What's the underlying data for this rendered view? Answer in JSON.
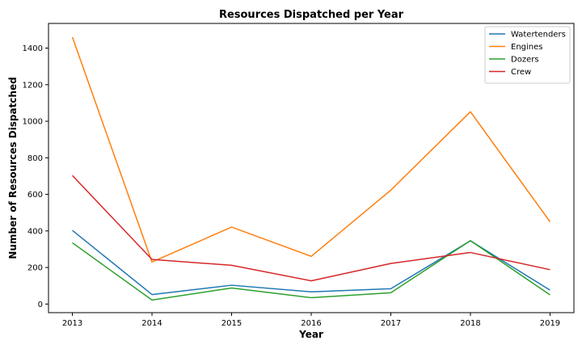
{
  "chart_data": {
    "type": "line",
    "title": "Resources Dispatched per Year",
    "xlabel": "Year",
    "ylabel": "Number of Resources Dispatched",
    "x": [
      2013,
      2014,
      2015,
      2016,
      2017,
      2018,
      2019
    ],
    "x_tick_labels": [
      "2013",
      "2014",
      "2015",
      "2016",
      "2017",
      "2018",
      "2019"
    ],
    "y_ticks": [
      0,
      200,
      400,
      600,
      800,
      1000,
      1200,
      1400
    ],
    "y_tick_labels": [
      "0",
      "200",
      "400",
      "600",
      "800",
      "1000",
      "1200",
      "1400"
    ],
    "xlim": [
      2012.7,
      2019.3
    ],
    "ylim": [
      -47,
      1535
    ],
    "grid": false,
    "legend_position": "top-right",
    "series": [
      {
        "name": "Watertenders",
        "color": "#1f77b4",
        "values": [
          403,
          52,
          103,
          67,
          84,
          346,
          76
        ]
      },
      {
        "name": "Engines",
        "color": "#ff7f0e",
        "values": [
          1460,
          230,
          421,
          261,
          623,
          1052,
          450
        ]
      },
      {
        "name": "Dozers",
        "color": "#2ca02c",
        "values": [
          335,
          22,
          88,
          35,
          62,
          347,
          50
        ]
      },
      {
        "name": "Crew",
        "color": "#d62728",
        "values": [
          703,
          244,
          212,
          127,
          222,
          282,
          188
        ]
      }
    ]
  }
}
